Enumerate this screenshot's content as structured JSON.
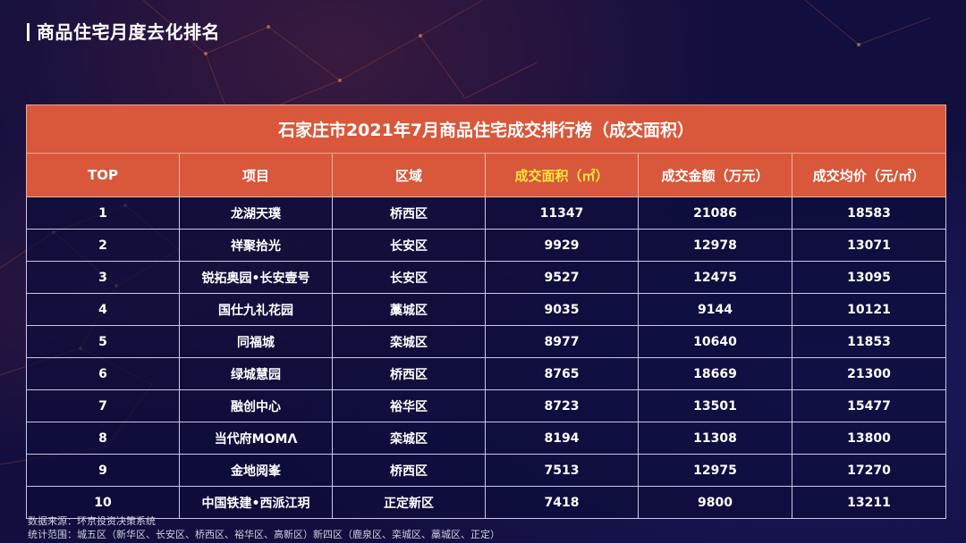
{
  "page": {
    "title": "商品住宅月度去化排名"
  },
  "table": {
    "caption": "石家庄市2021年7月商品住宅成交排行榜（成交面积）",
    "headers": [
      "TOP",
      "项目",
      "区域",
      "成交面积（㎡）",
      "成交金额（万元）",
      "成交均价（元/㎡）"
    ],
    "highlight_header_color": "#ffe63a",
    "rows": [
      [
        "1",
        "龙湖天璞",
        "桥西区",
        "11347",
        "21086",
        "18583"
      ],
      [
        "2",
        "祥聚拾光",
        "长安区",
        "9929",
        "12978",
        "13071"
      ],
      [
        "3",
        "锐拓奥园•长安壹号",
        "长安区",
        "9527",
        "12475",
        "13095"
      ],
      [
        "4",
        "国仕九礼花园",
        "藁城区",
        "9035",
        "9144",
        "10121"
      ],
      [
        "5",
        "同福城",
        "栾城区",
        "8977",
        "10640",
        "11853"
      ],
      [
        "6",
        "绿城慧园",
        "桥西区",
        "8765",
        "18669",
        "21300"
      ],
      [
        "7",
        "融创中心",
        "裕华区",
        "8723",
        "13501",
        "15477"
      ],
      [
        "8",
        "当代府MOMΛ",
        "栾城区",
        "8194",
        "11308",
        "13800"
      ],
      [
        "9",
        "金地阅峯",
        "桥西区",
        "7513",
        "12975",
        "17270"
      ],
      [
        "10",
        "中国铁建•西派江玥",
        "正定新区",
        "7418",
        "9800",
        "13211"
      ]
    ]
  },
  "footer": {
    "source": "数据来源：环京投资决策系统",
    "scope": "统计范围：城五区（新华区、长安区、桥西区、裕华区、高新区）新四区（鹿泉区、栾城区、藁城区、正定）"
  },
  "colors": {
    "background": "#120e3e",
    "header_fill": "#d9573a"
  }
}
